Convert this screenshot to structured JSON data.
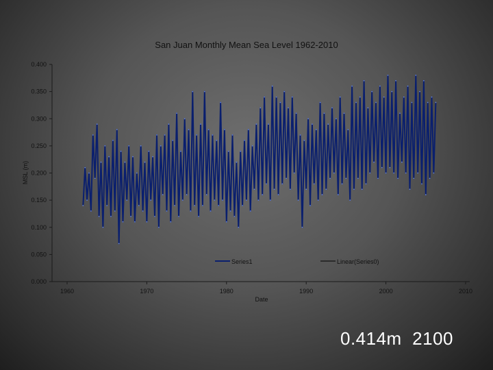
{
  "chart_data": {
    "type": "line",
    "title": "San Juan Monthly Mean Sea Level 1962-2010",
    "xlabel": "Date",
    "ylabel": "MSL (m)",
    "xlim": [
      1960,
      2010
    ],
    "ylim": [
      0.0,
      0.4
    ],
    "x_ticks": [
      "1960",
      "1970",
      "1980",
      "1990",
      "2000",
      "2010"
    ],
    "y_ticks": [
      "0.000",
      "0.050",
      "0.100",
      "0.150",
      "0.200",
      "0.250",
      "0.300",
      "0.350",
      "0.400"
    ],
    "legend": [
      "Series1",
      "Linear(Series0)"
    ],
    "legend_position": "bottom",
    "grid": false,
    "series": [
      {
        "name": "Series1",
        "color": "#0a1f6e",
        "x_start": 1962.0,
        "x_step": 0.25,
        "values": [
          0.14,
          0.21,
          0.15,
          0.2,
          0.13,
          0.27,
          0.19,
          0.29,
          0.12,
          0.22,
          0.1,
          0.25,
          0.14,
          0.23,
          0.12,
          0.26,
          0.13,
          0.28,
          0.07,
          0.24,
          0.11,
          0.22,
          0.15,
          0.25,
          0.12,
          0.23,
          0.11,
          0.2,
          0.14,
          0.25,
          0.13,
          0.22,
          0.11,
          0.24,
          0.15,
          0.23,
          0.12,
          0.27,
          0.1,
          0.25,
          0.16,
          0.27,
          0.13,
          0.29,
          0.11,
          0.26,
          0.14,
          0.31,
          0.12,
          0.24,
          0.15,
          0.3,
          0.16,
          0.28,
          0.13,
          0.35,
          0.14,
          0.27,
          0.12,
          0.29,
          0.14,
          0.35,
          0.16,
          0.28,
          0.13,
          0.27,
          0.15,
          0.26,
          0.14,
          0.33,
          0.15,
          0.28,
          0.11,
          0.24,
          0.13,
          0.27,
          0.12,
          0.22,
          0.1,
          0.24,
          0.14,
          0.26,
          0.15,
          0.28,
          0.13,
          0.25,
          0.17,
          0.29,
          0.15,
          0.32,
          0.16,
          0.34,
          0.18,
          0.29,
          0.15,
          0.36,
          0.17,
          0.34,
          0.16,
          0.33,
          0.18,
          0.35,
          0.19,
          0.32,
          0.17,
          0.34,
          0.2,
          0.31,
          0.15,
          0.27,
          0.1,
          0.26,
          0.17,
          0.3,
          0.14,
          0.29,
          0.18,
          0.28,
          0.15,
          0.33,
          0.16,
          0.31,
          0.17,
          0.29,
          0.19,
          0.32,
          0.2,
          0.3,
          0.16,
          0.34,
          0.18,
          0.31,
          0.19,
          0.28,
          0.15,
          0.36,
          0.17,
          0.33,
          0.19,
          0.34,
          0.17,
          0.37,
          0.18,
          0.32,
          0.2,
          0.35,
          0.22,
          0.33,
          0.19,
          0.36,
          0.21,
          0.34,
          0.2,
          0.38,
          0.21,
          0.35,
          0.2,
          0.37,
          0.19,
          0.31,
          0.22,
          0.34,
          0.2,
          0.36,
          0.17,
          0.33,
          0.19,
          0.38,
          0.2,
          0.35,
          0.18,
          0.37,
          0.16,
          0.33,
          0.19,
          0.34,
          0.2,
          0.33
        ]
      },
      {
        "name": "Linear(Series0)",
        "color": "#000000",
        "values": []
      }
    ]
  },
  "annotation": "0.414m  2100"
}
